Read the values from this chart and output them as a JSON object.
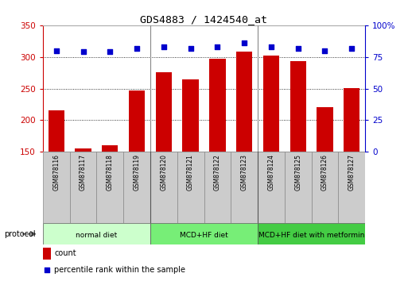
{
  "title": "GDS4883 / 1424540_at",
  "samples": [
    "GSM878116",
    "GSM878117",
    "GSM878118",
    "GSM878119",
    "GSM878120",
    "GSM878121",
    "GSM878122",
    "GSM878123",
    "GSM878124",
    "GSM878125",
    "GSM878126",
    "GSM878127"
  ],
  "counts": [
    215,
    155,
    160,
    247,
    276,
    265,
    297,
    308,
    302,
    293,
    221,
    251
  ],
  "percentiles": [
    80,
    79,
    79,
    82,
    83,
    82,
    83,
    86,
    83,
    82,
    80,
    82
  ],
  "bar_color": "#cc0000",
  "dot_color": "#0000cc",
  "ylim_left": [
    150,
    350
  ],
  "ylim_right": [
    0,
    100
  ],
  "yticks_left": [
    150,
    200,
    250,
    300,
    350
  ],
  "yticks_right": [
    0,
    25,
    50,
    75,
    100
  ],
  "groups": [
    {
      "label": "normal diet",
      "start": 0,
      "end": 4,
      "color": "#ccffcc"
    },
    {
      "label": "MCD+HF diet",
      "start": 4,
      "end": 8,
      "color": "#77ee77"
    },
    {
      "label": "MCD+HF diet with metformin",
      "start": 8,
      "end": 12,
      "color": "#44cc44"
    }
  ],
  "protocol_label": "protocol",
  "legend_count_label": "count",
  "legend_pct_label": "percentile rank within the sample",
  "bg_color": "#ffffff",
  "plot_bg_color": "#ffffff",
  "sample_box_color": "#cccccc",
  "grid_color": "#000000",
  "left_axis_color": "#cc0000",
  "right_axis_color": "#0000cc"
}
